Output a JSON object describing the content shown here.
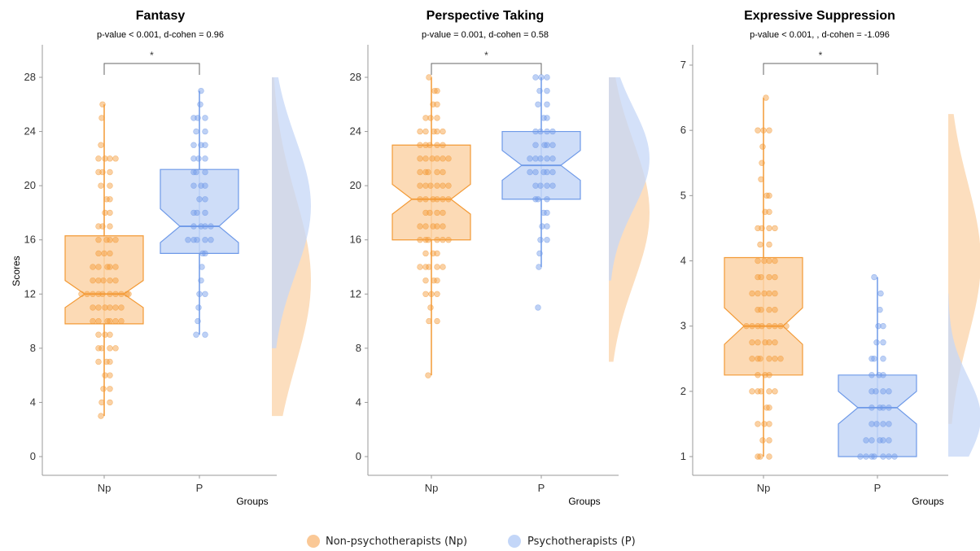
{
  "legend": {
    "position": "bottom",
    "items": [
      {
        "label": "Non-psychotherapists (Np)",
        "color": "#f8b06a"
      },
      {
        "label": "Psychotherapists (P)",
        "color": "#a9c4f5"
      }
    ]
  },
  "chart_data": [
    {
      "type": "boxplot",
      "title": "Fantasy",
      "subtitle": "p-value < 0.001, d-cohen = 0.96",
      "ylabel": "Scores",
      "xlabel": "Groups",
      "categories": [
        "Np",
        "P"
      ],
      "ylim": [
        0,
        28
      ],
      "yticks": [
        0,
        4,
        8,
        12,
        16,
        20,
        24,
        28
      ],
      "significance": "*",
      "series": [
        {
          "name": "Np",
          "color": "#f39a36",
          "fill": "#fbd3a8",
          "min": 3,
          "q1": 9.8,
          "median": 12,
          "q3": 16.3,
          "max": 26,
          "notch": [
            11.0,
            13.0
          ],
          "points": [
            3,
            4,
            4,
            5,
            5,
            6,
            6,
            7,
            7,
            7,
            8,
            8,
            8,
            8,
            9,
            9,
            9,
            10,
            10,
            10,
            10,
            10,
            10,
            11,
            11,
            11,
            11,
            11,
            11,
            12,
            12,
            12,
            12,
            12,
            12,
            12,
            12,
            12,
            12,
            13,
            13,
            13,
            13,
            13,
            14,
            14,
            14,
            14,
            14,
            15,
            15,
            15,
            16,
            16,
            16,
            16,
            17,
            17,
            17,
            18,
            18,
            19,
            19,
            20,
            20,
            21,
            21,
            21,
            22,
            22,
            22,
            22,
            23,
            25,
            26
          ],
          "density_range": [
            3,
            28
          ],
          "density_peak": 13
        },
        {
          "name": "P",
          "color": "#6f9ae8",
          "fill": "#c6d7f7",
          "min": 9,
          "q1": 15,
          "median": 17,
          "q3": 21.2,
          "max": 27,
          "notch": [
            15.8,
            18.3
          ],
          "points": [
            9,
            9,
            10,
            11,
            12,
            12,
            13,
            14,
            15,
            15,
            16,
            16,
            16,
            16,
            16,
            17,
            17,
            17,
            17,
            18,
            18,
            18,
            19,
            19,
            20,
            20,
            20,
            21,
            21,
            21,
            22,
            22,
            22,
            23,
            23,
            23,
            24,
            24,
            25,
            25,
            25,
            26,
            27
          ],
          "density_range": [
            8,
            28
          ],
          "density_peak": 18.5
        }
      ]
    },
    {
      "type": "boxplot",
      "title": "Perspective Taking",
      "subtitle": "p-value = 0.001, d-cohen = 0.58",
      "ylabel": "",
      "xlabel": "Groups",
      "categories": [
        "Np",
        "P"
      ],
      "ylim": [
        0,
        28
      ],
      "yticks": [
        0,
        4,
        8,
        12,
        16,
        20,
        24,
        28
      ],
      "significance": "*",
      "series": [
        {
          "name": "Np",
          "color": "#f39a36",
          "fill": "#fbd3a8",
          "min": 6,
          "q1": 16,
          "median": 19,
          "q3": 23,
          "max": 28,
          "notch": [
            17.9,
            20.1
          ],
          "points": [
            6,
            10,
            10,
            11,
            12,
            12,
            12,
            13,
            13,
            13,
            14,
            14,
            14,
            14,
            14,
            15,
            15,
            15,
            16,
            16,
            16,
            16,
            16,
            16,
            17,
            17,
            17,
            17,
            17,
            18,
            18,
            18,
            18,
            19,
            19,
            19,
            19,
            19,
            19,
            20,
            20,
            20,
            20,
            20,
            20,
            21,
            21,
            21,
            21,
            21,
            22,
            22,
            22,
            22,
            22,
            22,
            23,
            23,
            23,
            23,
            23,
            24,
            24,
            24,
            24,
            24,
            25,
            25,
            25,
            26,
            26,
            27,
            27,
            28
          ],
          "density_range": [
            7,
            28
          ],
          "density_peak": 18
        },
        {
          "name": "P",
          "color": "#6f9ae8",
          "fill": "#c6d7f7",
          "min": 14,
          "q1": 19,
          "median": 21.5,
          "q3": 24,
          "max": 28,
          "notch": [
            20.4,
            22.6
          ],
          "points": [
            11,
            14,
            15,
            16,
            16,
            17,
            17,
            18,
            18,
            19,
            19,
            19,
            20,
            20,
            20,
            20,
            21,
            21,
            21,
            21,
            21,
            22,
            22,
            22,
            22,
            22,
            23,
            23,
            23,
            23,
            24,
            24,
            24,
            24,
            25,
            25,
            26,
            26,
            27,
            27,
            28,
            28,
            28
          ],
          "density_range": [
            13,
            28
          ],
          "density_peak": 22
        }
      ]
    },
    {
      "type": "boxplot",
      "title": "Expressive Suppression",
      "subtitle": "p-value < 0.001, , d-cohen = -1.096",
      "ylabel": "",
      "xlabel": "Groups",
      "categories": [
        "Np",
        "P"
      ],
      "ylim": [
        1,
        7
      ],
      "yticks": [
        1,
        2,
        3,
        4,
        5,
        6,
        7
      ],
      "significance": "*",
      "series": [
        {
          "name": "Np",
          "color": "#f39a36",
          "fill": "#fbd3a8",
          "min": 1,
          "q1": 2.25,
          "median": 3,
          "q3": 4.05,
          "max": 6.5,
          "notch": [
            2.72,
            3.28
          ],
          "points": [
            1,
            1,
            1,
            1.25,
            1.25,
            1.5,
            1.5,
            1.5,
            1.75,
            1.75,
            2,
            2,
            2,
            2,
            2,
            2.25,
            2.25,
            2.25,
            2.5,
            2.5,
            2.5,
            2.5,
            2.5,
            2.5,
            2.75,
            2.75,
            2.75,
            2.75,
            2.75,
            3,
            3,
            3,
            3,
            3,
            3,
            3,
            3,
            3.25,
            3.25,
            3.25,
            3.25,
            3.5,
            3.5,
            3.5,
            3.5,
            3.5,
            3.75,
            3.75,
            3.75,
            3.75,
            4,
            4,
            4,
            4,
            4.25,
            4.25,
            4.5,
            4.5,
            4.5,
            4.5,
            4.75,
            4.75,
            5,
            5,
            5.25,
            5.5,
            5.75,
            6,
            6,
            6,
            6.5
          ],
          "density_range": [
            1.5,
            6.25
          ],
          "density_peak": 4
        },
        {
          "name": "P",
          "color": "#6f9ae8",
          "fill": "#c6d7f7",
          "min": 1,
          "q1": 1,
          "median": 1.75,
          "q3": 2.25,
          "max": 3.75,
          "notch": [
            1.5,
            2.0
          ],
          "points": [
            1,
            1,
            1,
            1,
            1,
            1,
            1,
            1.25,
            1.25,
            1.25,
            1.25,
            1.25,
            1.5,
            1.5,
            1.5,
            1.5,
            1.75,
            1.75,
            1.75,
            1.75,
            2,
            2,
            2,
            2,
            2.25,
            2.25,
            2.25,
            2.5,
            2.5,
            2.5,
            2.75,
            2.75,
            3,
            3,
            3.25,
            3.5,
            3.75
          ],
          "density_range": [
            1,
            3.5
          ],
          "density_peak": 1.6
        }
      ]
    }
  ]
}
